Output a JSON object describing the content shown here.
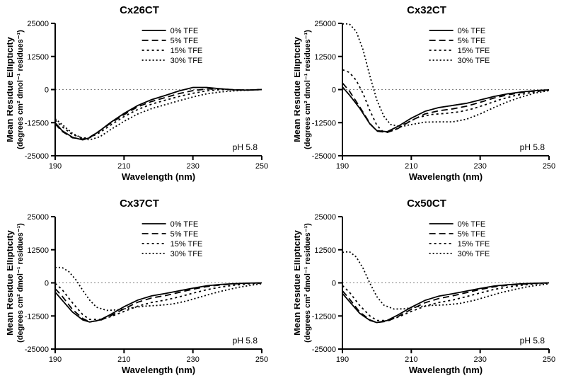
{
  "figure": {
    "background_color": "#ffffff",
    "axis_color": "#000000",
    "grid_color": "#808080",
    "font_family": "Arial, Helvetica, sans-serif",
    "title_fontsize": 15,
    "axis_label_fontsize": 13,
    "tick_fontsize": 11,
    "legend_fontsize": 11,
    "annotation_fontsize": 12,
    "line_color": "#000000",
    "line_width": 1.8,
    "xlim": [
      190,
      250
    ],
    "ylim": [
      -25000,
      25000
    ],
    "xticks": [
      190,
      210,
      230,
      250
    ],
    "yticks": [
      -25000,
      -12500,
      0,
      12500,
      25000
    ],
    "xlabel": "Wavelength (nm)",
    "ylabel_line1": "Mean Residue Ellipticity",
    "ylabel_line2": "(degrees cm² dmol⁻¹ residues⁻¹)",
    "annotation": "pH 5.8",
    "dash_patterns": {
      "0% TFE": "none",
      "5% TFE": "9 5",
      "15% TFE": "3 4",
      "30% TFE": "2 3"
    },
    "legend_items": [
      "0% TFE",
      "5% TFE",
      "15% TFE",
      "30% TFE"
    ]
  },
  "panels": [
    {
      "title": "Cx26CT",
      "series": {
        "0% TFE": [
          [
            190,
            -12500
          ],
          [
            192,
            -15500
          ],
          [
            195,
            -18000
          ],
          [
            198,
            -19000
          ],
          [
            200,
            -18200
          ],
          [
            203,
            -15500
          ],
          [
            206,
            -12500
          ],
          [
            210,
            -9000
          ],
          [
            214,
            -6000
          ],
          [
            218,
            -3800
          ],
          [
            222,
            -2200
          ],
          [
            226,
            -500
          ],
          [
            230,
            800
          ],
          [
            234,
            800
          ],
          [
            238,
            300
          ],
          [
            242,
            -100
          ],
          [
            246,
            -200
          ],
          [
            250,
            0
          ]
        ],
        "5% TFE": [
          [
            190,
            -13000
          ],
          [
            192,
            -15800
          ],
          [
            195,
            -18200
          ],
          [
            198,
            -18700
          ],
          [
            200,
            -18000
          ],
          [
            203,
            -15500
          ],
          [
            206,
            -12800
          ],
          [
            210,
            -9500
          ],
          [
            214,
            -6500
          ],
          [
            218,
            -4500
          ],
          [
            222,
            -3000
          ],
          [
            226,
            -1500
          ],
          [
            230,
            -400
          ],
          [
            234,
            200
          ],
          [
            238,
            300
          ],
          [
            242,
            -100
          ],
          [
            246,
            -200
          ],
          [
            250,
            0
          ]
        ],
        "15% TFE": [
          [
            190,
            -11500
          ],
          [
            192,
            -14000
          ],
          [
            195,
            -17000
          ],
          [
            198,
            -18300
          ],
          [
            200,
            -18200
          ],
          [
            203,
            -16200
          ],
          [
            206,
            -13500
          ],
          [
            210,
            -10200
          ],
          [
            214,
            -7500
          ],
          [
            218,
            -5500
          ],
          [
            222,
            -4000
          ],
          [
            226,
            -2600
          ],
          [
            230,
            -1400
          ],
          [
            234,
            -500
          ],
          [
            238,
            0
          ],
          [
            242,
            -100
          ],
          [
            246,
            -200
          ],
          [
            250,
            0
          ]
        ],
        "30% TFE": [
          [
            190,
            -11000
          ],
          [
            192,
            -13200
          ],
          [
            195,
            -16500
          ],
          [
            198,
            -18500
          ],
          [
            200,
            -19000
          ],
          [
            203,
            -17800
          ],
          [
            206,
            -15200
          ],
          [
            210,
            -12000
          ],
          [
            214,
            -9200
          ],
          [
            218,
            -7200
          ],
          [
            222,
            -5700
          ],
          [
            226,
            -4200
          ],
          [
            230,
            -2800
          ],
          [
            234,
            -1600
          ],
          [
            238,
            -900
          ],
          [
            242,
            -500
          ],
          [
            246,
            -200
          ],
          [
            250,
            0
          ]
        ]
      }
    },
    {
      "title": "Cx32CT",
      "series": {
        "0% TFE": [
          [
            190,
            1000
          ],
          [
            192,
            -2000
          ],
          [
            195,
            -7000
          ],
          [
            198,
            -13000
          ],
          [
            200,
            -15500
          ],
          [
            203,
            -15900
          ],
          [
            206,
            -14000
          ],
          [
            210,
            -10800
          ],
          [
            214,
            -8200
          ],
          [
            218,
            -6800
          ],
          [
            222,
            -6000
          ],
          [
            226,
            -5200
          ],
          [
            230,
            -3900
          ],
          [
            234,
            -2600
          ],
          [
            238,
            -1600
          ],
          [
            242,
            -900
          ],
          [
            246,
            -400
          ],
          [
            250,
            -100
          ]
        ],
        "5% TFE": [
          [
            190,
            2500
          ],
          [
            192,
            -500
          ],
          [
            195,
            -6500
          ],
          [
            198,
            -12800
          ],
          [
            200,
            -15700
          ],
          [
            203,
            -16200
          ],
          [
            206,
            -14800
          ],
          [
            210,
            -11700
          ],
          [
            214,
            -9200
          ],
          [
            218,
            -8000
          ],
          [
            222,
            -7300
          ],
          [
            226,
            -6300
          ],
          [
            230,
            -4800
          ],
          [
            234,
            -3200
          ],
          [
            238,
            -2000
          ],
          [
            242,
            -1100
          ],
          [
            246,
            -500
          ],
          [
            250,
            -100
          ]
        ],
        "15% TFE": [
          [
            190,
            7500
          ],
          [
            192,
            6500
          ],
          [
            194,
            3500
          ],
          [
            196,
            -1500
          ],
          [
            198,
            -8000
          ],
          [
            200,
            -13500
          ],
          [
            202,
            -16200
          ],
          [
            205,
            -15400
          ],
          [
            208,
            -13000
          ],
          [
            212,
            -10500
          ],
          [
            216,
            -9400
          ],
          [
            220,
            -9000
          ],
          [
            224,
            -8400
          ],
          [
            228,
            -7200
          ],
          [
            232,
            -5500
          ],
          [
            236,
            -3700
          ],
          [
            240,
            -2300
          ],
          [
            244,
            -1300
          ],
          [
            248,
            -500
          ],
          [
            250,
            -200
          ]
        ],
        "30% TFE": [
          [
            190,
            24800
          ],
          [
            192,
            24800
          ],
          [
            194,
            22000
          ],
          [
            196,
            15000
          ],
          [
            198,
            5000
          ],
          [
            200,
            -4000
          ],
          [
            202,
            -10000
          ],
          [
            204,
            -13200
          ],
          [
            207,
            -14000
          ],
          [
            210,
            -13200
          ],
          [
            214,
            -12300
          ],
          [
            218,
            -12200
          ],
          [
            222,
            -12200
          ],
          [
            226,
            -11200
          ],
          [
            230,
            -9200
          ],
          [
            234,
            -6800
          ],
          [
            238,
            -4600
          ],
          [
            242,
            -2800
          ],
          [
            246,
            -1300
          ],
          [
            250,
            -400
          ]
        ]
      }
    },
    {
      "title": "Cx37CT",
      "series": {
        "0% TFE": [
          [
            190,
            -3500
          ],
          [
            192,
            -6500
          ],
          [
            195,
            -11000
          ],
          [
            198,
            -14000
          ],
          [
            200,
            -14800
          ],
          [
            203,
            -14000
          ],
          [
            206,
            -12000
          ],
          [
            210,
            -9000
          ],
          [
            214,
            -6500
          ],
          [
            218,
            -4900
          ],
          [
            222,
            -4000
          ],
          [
            226,
            -3000
          ],
          [
            230,
            -2000
          ],
          [
            234,
            -1100
          ],
          [
            238,
            -600
          ],
          [
            242,
            -300
          ],
          [
            246,
            -100
          ],
          [
            250,
            0
          ]
        ],
        "5% TFE": [
          [
            190,
            -2200
          ],
          [
            192,
            -5000
          ],
          [
            195,
            -10000
          ],
          [
            198,
            -13500
          ],
          [
            200,
            -14700
          ],
          [
            203,
            -14200
          ],
          [
            206,
            -12500
          ],
          [
            210,
            -9800
          ],
          [
            214,
            -7300
          ],
          [
            218,
            -5700
          ],
          [
            222,
            -4800
          ],
          [
            226,
            -3600
          ],
          [
            230,
            -2400
          ],
          [
            234,
            -1400
          ],
          [
            238,
            -800
          ],
          [
            242,
            -400
          ],
          [
            246,
            -150
          ],
          [
            250,
            0
          ]
        ],
        "15% TFE": [
          [
            190,
            -200
          ],
          [
            192,
            -2500
          ],
          [
            195,
            -7500
          ],
          [
            198,
            -12000
          ],
          [
            200,
            -13800
          ],
          [
            203,
            -13800
          ],
          [
            206,
            -12800
          ],
          [
            210,
            -10800
          ],
          [
            214,
            -8800
          ],
          [
            218,
            -7400
          ],
          [
            222,
            -6500
          ],
          [
            226,
            -5300
          ],
          [
            230,
            -3900
          ],
          [
            234,
            -2600
          ],
          [
            238,
            -1600
          ],
          [
            242,
            -900
          ],
          [
            246,
            -400
          ],
          [
            250,
            -100
          ]
        ],
        "30% TFE": [
          [
            190,
            5800
          ],
          [
            192,
            5800
          ],
          [
            194,
            4200
          ],
          [
            196,
            1200
          ],
          [
            198,
            -2800
          ],
          [
            200,
            -6500
          ],
          [
            202,
            -9200
          ],
          [
            205,
            -10400
          ],
          [
            208,
            -10200
          ],
          [
            212,
            -9400
          ],
          [
            216,
            -8800
          ],
          [
            220,
            -8500
          ],
          [
            224,
            -8000
          ],
          [
            228,
            -6900
          ],
          [
            232,
            -5400
          ],
          [
            236,
            -3900
          ],
          [
            240,
            -2600
          ],
          [
            244,
            -1500
          ],
          [
            248,
            -700
          ],
          [
            250,
            -300
          ]
        ]
      }
    },
    {
      "title": "Cx50CT",
      "series": {
        "0% TFE": [
          [
            190,
            -4000
          ],
          [
            192,
            -7000
          ],
          [
            195,
            -11500
          ],
          [
            198,
            -14200
          ],
          [
            200,
            -15000
          ],
          [
            203,
            -14200
          ],
          [
            206,
            -12200
          ],
          [
            210,
            -9200
          ],
          [
            214,
            -6600
          ],
          [
            218,
            -5000
          ],
          [
            222,
            -4100
          ],
          [
            226,
            -3100
          ],
          [
            230,
            -2100
          ],
          [
            234,
            -1200
          ],
          [
            238,
            -700
          ],
          [
            242,
            -350
          ],
          [
            246,
            -150
          ],
          [
            250,
            0
          ]
        ],
        "5% TFE": [
          [
            190,
            -3000
          ],
          [
            192,
            -6000
          ],
          [
            195,
            -11000
          ],
          [
            198,
            -14000
          ],
          [
            200,
            -15000
          ],
          [
            203,
            -14500
          ],
          [
            206,
            -12800
          ],
          [
            210,
            -10000
          ],
          [
            214,
            -7500
          ],
          [
            218,
            -5900
          ],
          [
            222,
            -4900
          ],
          [
            226,
            -3700
          ],
          [
            230,
            -2500
          ],
          [
            234,
            -1500
          ],
          [
            238,
            -900
          ],
          [
            242,
            -500
          ],
          [
            246,
            -200
          ],
          [
            250,
            0
          ]
        ],
        "15% TFE": [
          [
            190,
            -1000
          ],
          [
            192,
            -3500
          ],
          [
            195,
            -8500
          ],
          [
            198,
            -12500
          ],
          [
            200,
            -14200
          ],
          [
            203,
            -14200
          ],
          [
            206,
            -13000
          ],
          [
            210,
            -10800
          ],
          [
            214,
            -8800
          ],
          [
            218,
            -7400
          ],
          [
            222,
            -6500
          ],
          [
            226,
            -5200
          ],
          [
            230,
            -3800
          ],
          [
            234,
            -2500
          ],
          [
            238,
            -1600
          ],
          [
            242,
            -900
          ],
          [
            246,
            -400
          ],
          [
            250,
            -100
          ]
        ],
        "30% TFE": [
          [
            190,
            11500
          ],
          [
            192,
            11800
          ],
          [
            194,
            9800
          ],
          [
            196,
            5500
          ],
          [
            198,
            -200
          ],
          [
            200,
            -5200
          ],
          [
            202,
            -8400
          ],
          [
            205,
            -9900
          ],
          [
            208,
            -9800
          ],
          [
            212,
            -9000
          ],
          [
            216,
            -8500
          ],
          [
            220,
            -8300
          ],
          [
            224,
            -7800
          ],
          [
            228,
            -6700
          ],
          [
            232,
            -5200
          ],
          [
            236,
            -3700
          ],
          [
            240,
            -2500
          ],
          [
            244,
            -1400
          ],
          [
            248,
            -700
          ],
          [
            250,
            -300
          ]
        ]
      }
    }
  ]
}
